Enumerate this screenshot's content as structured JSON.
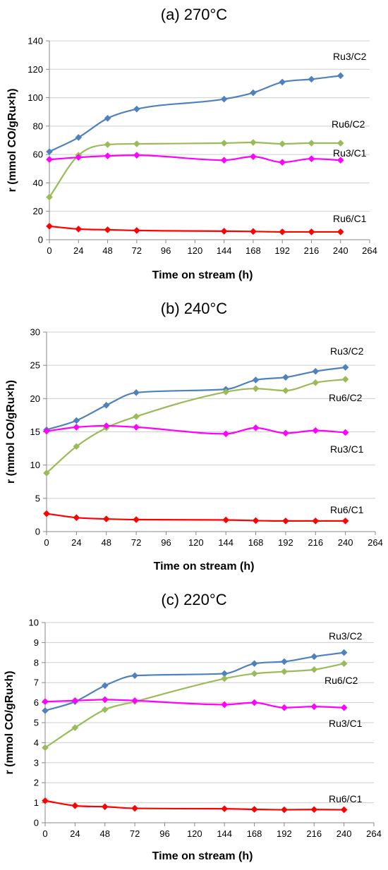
{
  "colors": {
    "Ru3/C2": "#4f81bd",
    "Ru6/C2": "#9bbb59",
    "Ru3/C1": "#ff00ff",
    "Ru6/C1": "#ff0000",
    "axis": "#888888",
    "grid": "#cfcfcf"
  },
  "chart_data": [
    {
      "type": "line",
      "title": "(a) 270°C",
      "xlabel": "Time  on stream (h)",
      "ylabel": "r  (mmol CO/gRu×h)",
      "xlim": [
        0,
        264
      ],
      "ylim": [
        0,
        140
      ],
      "x_ticks": [
        0,
        24,
        48,
        72,
        96,
        120,
        144,
        168,
        192,
        216,
        240,
        264
      ],
      "y_ticks": [
        0,
        20,
        40,
        60,
        80,
        100,
        120,
        140
      ],
      "grid": "horizontal",
      "series": [
        {
          "name": "Ru3/C2",
          "x": [
            0,
            24,
            48,
            72,
            144,
            168,
            192,
            216,
            240
          ],
          "values": [
            62,
            72,
            85.5,
            92,
            99,
            103.5,
            111,
            113,
            115.5
          ]
        },
        {
          "name": "Ru6/C2",
          "x": [
            0,
            24,
            48,
            72,
            144,
            168,
            192,
            216,
            240
          ],
          "values": [
            30,
            59.5,
            67,
            67.5,
            68,
            68.5,
            67.5,
            68,
            68
          ]
        },
        {
          "name": "Ru3/C1",
          "x": [
            0,
            24,
            48,
            72,
            144,
            168,
            192,
            216,
            240
          ],
          "values": [
            56.5,
            58,
            59,
            59.5,
            56,
            58.5,
            54.5,
            57,
            56
          ]
        },
        {
          "name": "Ru6/C1",
          "x": [
            0,
            24,
            48,
            72,
            144,
            168,
            192,
            216,
            240
          ],
          "values": [
            9.5,
            7.5,
            7,
            6.5,
            6,
            5.8,
            5.5,
            5.5,
            5.5
          ]
        }
      ]
    },
    {
      "type": "line",
      "title": "(b) 240°C",
      "xlabel": "Time  on stream (h)",
      "ylabel": "r (mmol CO/gRu×h)",
      "xlim": [
        0,
        264
      ],
      "ylim": [
        0,
        30
      ],
      "x_ticks": [
        0,
        24,
        48,
        72,
        96,
        120,
        144,
        168,
        192,
        216,
        240,
        264
      ],
      "y_ticks": [
        0,
        5,
        10,
        15,
        20,
        25,
        30
      ],
      "grid": "horizontal",
      "series": [
        {
          "name": "Ru3/C2",
          "x": [
            0,
            24,
            48,
            72,
            144,
            168,
            192,
            216,
            240
          ],
          "values": [
            15.3,
            16.7,
            19,
            20.9,
            21.4,
            22.8,
            23.2,
            24.1,
            24.7
          ]
        },
        {
          "name": "Ru6/C2",
          "x": [
            0,
            24,
            48,
            72,
            144,
            168,
            192,
            216,
            240
          ],
          "values": [
            8.8,
            12.8,
            15.6,
            17.3,
            21,
            21.5,
            21.2,
            22.4,
            22.9
          ]
        },
        {
          "name": "Ru3/C1",
          "x": [
            0,
            24,
            48,
            72,
            144,
            168,
            192,
            216,
            240
          ],
          "values": [
            15.1,
            15.7,
            15.9,
            15.7,
            14.7,
            15.6,
            14.8,
            15.2,
            14.9
          ]
        },
        {
          "name": "Ru6/C1",
          "x": [
            0,
            24,
            48,
            72,
            144,
            168,
            192,
            216,
            240
          ],
          "values": [
            2.7,
            2.1,
            1.9,
            1.8,
            1.75,
            1.65,
            1.6,
            1.6,
            1.6
          ]
        }
      ]
    },
    {
      "type": "line",
      "title": "(c) 220°C",
      "xlabel": "Time  on stream (h)",
      "ylabel": "r (mmol CO/gRu×h)",
      "xlim": [
        0,
        264
      ],
      "ylim": [
        0,
        10
      ],
      "x_ticks": [
        0,
        24,
        48,
        72,
        96,
        120,
        144,
        168,
        192,
        216,
        240,
        264
      ],
      "y_ticks": [
        0,
        1,
        2,
        3,
        4,
        5,
        6,
        7,
        8,
        9,
        10
      ],
      "grid": "horizontal",
      "series": [
        {
          "name": "Ru3/C2",
          "x": [
            0,
            24,
            48,
            72,
            144,
            168,
            192,
            216,
            240
          ],
          "values": [
            5.6,
            6.05,
            6.85,
            7.35,
            7.45,
            7.95,
            8.05,
            8.3,
            8.5
          ]
        },
        {
          "name": "Ru6/C2",
          "x": [
            0,
            24,
            48,
            72,
            144,
            168,
            192,
            216,
            240
          ],
          "values": [
            3.75,
            4.75,
            5.65,
            6.05,
            7.2,
            7.45,
            7.55,
            7.65,
            7.95
          ]
        },
        {
          "name": "Ru3/C1",
          "x": [
            0,
            24,
            48,
            72,
            144,
            168,
            192,
            216,
            240
          ],
          "values": [
            6.05,
            6.1,
            6.15,
            6.1,
            5.9,
            6.0,
            5.75,
            5.8,
            5.75
          ]
        },
        {
          "name": "Ru6/C1",
          "x": [
            0,
            24,
            48,
            72,
            144,
            168,
            192,
            216,
            240
          ],
          "values": [
            1.1,
            0.85,
            0.8,
            0.72,
            0.7,
            0.67,
            0.65,
            0.66,
            0.65
          ]
        }
      ]
    }
  ]
}
